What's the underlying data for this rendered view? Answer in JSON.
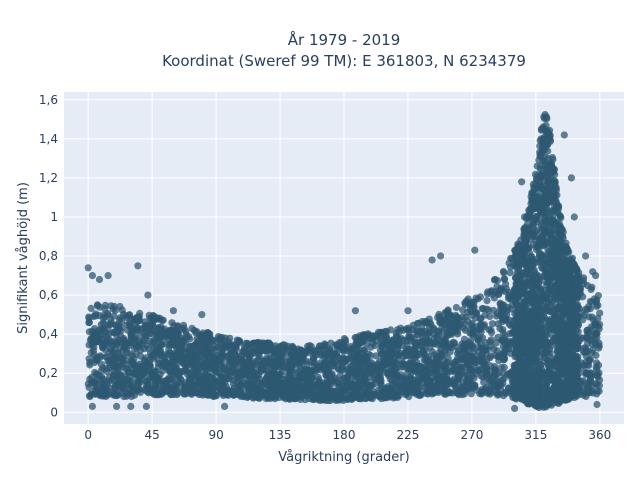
{
  "chart_data": {
    "type": "scatter",
    "title": "År 1979 - 2019",
    "subtitle": "Koordinat (Sweref 99 TM): E 361803, N 6234379",
    "xlabel": "Vågriktning (grader)",
    "ylabel": "Signifikant våghöjd (m)",
    "xlim": [
      -17,
      377
    ],
    "ylim": [
      -0.06,
      1.64
    ],
    "xticks": [
      0,
      45,
      90,
      135,
      180,
      225,
      270,
      315,
      360
    ],
    "xtick_labels": [
      "0",
      "45",
      "90",
      "135",
      "180",
      "225",
      "270",
      "315",
      "360"
    ],
    "yticks": [
      0,
      0.2,
      0.4,
      0.6,
      0.8,
      1.0,
      1.2,
      1.4,
      1.6
    ],
    "ytick_labels": [
      "0",
      "0,2",
      "0,4",
      "0,6",
      "0,8",
      "1",
      "1,2",
      "1,4",
      "1,6"
    ],
    "grid": true,
    "plot_background": "#e5ecf6",
    "marker_color": "#2e5872",
    "series": [
      {
        "envelope": {
          "x": [
            0,
            10,
            20,
            30,
            45,
            60,
            75,
            90,
            105,
            120,
            135,
            150,
            165,
            180,
            195,
            210,
            225,
            240,
            255,
            270,
            285,
            295,
            305,
            310,
            315,
            318,
            320,
            322,
            325,
            328,
            330,
            335,
            340,
            345,
            350,
            355,
            360
          ],
          "y_low": [
            0.08,
            0.08,
            0.08,
            0.08,
            0.09,
            0.09,
            0.09,
            0.08,
            0.08,
            0.07,
            0.07,
            0.06,
            0.06,
            0.06,
            0.07,
            0.07,
            0.08,
            0.08,
            0.09,
            0.09,
            0.09,
            0.08,
            0.06,
            0.04,
            0.03,
            0.02,
            0.02,
            0.02,
            0.02,
            0.03,
            0.04,
            0.06,
            0.07,
            0.08,
            0.08,
            0.08,
            0.09
          ],
          "y_high": [
            0.55,
            0.57,
            0.55,
            0.52,
            0.5,
            0.46,
            0.43,
            0.4,
            0.37,
            0.36,
            0.35,
            0.34,
            0.35,
            0.38,
            0.4,
            0.42,
            0.44,
            0.48,
            0.53,
            0.6,
            0.68,
            0.76,
            0.9,
            1.05,
            1.25,
            1.4,
            1.52,
            1.56,
            1.45,
            1.25,
            1.1,
            0.9,
            0.8,
            0.72,
            0.68,
            0.65,
            0.6
          ]
        },
        "outliers": [
          {
            "x": 0,
            "y": 0.74
          },
          {
            "x": 3,
            "y": 0.7
          },
          {
            "x": 8,
            "y": 0.68
          },
          {
            "x": 14,
            "y": 0.7
          },
          {
            "x": 35,
            "y": 0.75
          },
          {
            "x": 42,
            "y": 0.6
          },
          {
            "x": 60,
            "y": 0.52
          },
          {
            "x": 80,
            "y": 0.5
          },
          {
            "x": 3,
            "y": 0.03
          },
          {
            "x": 20,
            "y": 0.03
          },
          {
            "x": 30,
            "y": 0.03
          },
          {
            "x": 41,
            "y": 0.03
          },
          {
            "x": 96,
            "y": 0.03
          },
          {
            "x": 188,
            "y": 0.52
          },
          {
            "x": 225,
            "y": 0.52
          },
          {
            "x": 242,
            "y": 0.78
          },
          {
            "x": 248,
            "y": 0.8
          },
          {
            "x": 272,
            "y": 0.83
          },
          {
            "x": 300,
            "y": 0.02
          },
          {
            "x": 305,
            "y": 1.18
          },
          {
            "x": 307,
            "y": 1.0
          },
          {
            "x": 340,
            "y": 1.2
          },
          {
            "x": 342,
            "y": 1.0
          },
          {
            "x": 350,
            "y": 0.8
          },
          {
            "x": 355,
            "y": 0.72
          },
          {
            "x": 357,
            "y": 0.7
          },
          {
            "x": 358,
            "y": 0.04
          },
          {
            "x": 335,
            "y": 1.42
          }
        ]
      }
    ]
  }
}
